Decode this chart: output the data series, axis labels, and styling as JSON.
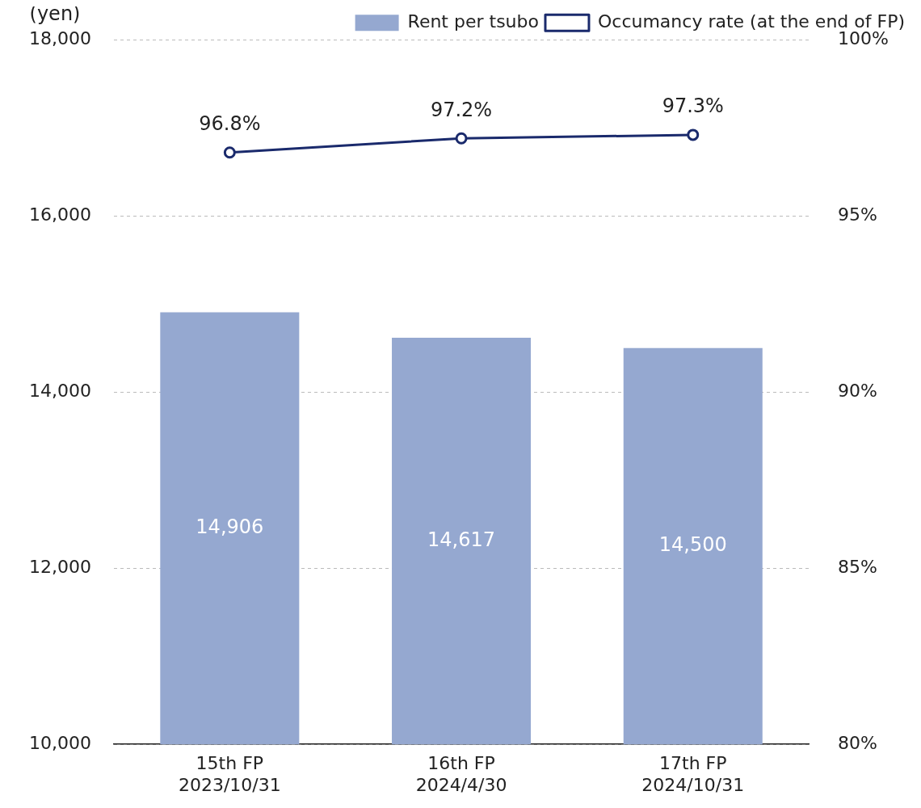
{
  "chart_data": {
    "type": "bar",
    "ylabel": "(yen)",
    "categories": [
      "15th FP\n2023/10/31",
      "16th FP\n2024/4/30",
      "17th FP\n2024/10/31"
    ],
    "series": [
      {
        "name": "Rent per tsubo",
        "color": "#95a8d0",
        "values": [
          14906,
          14617,
          14500
        ],
        "value_labels": [
          "14,906",
          "14,617",
          "14,500"
        ]
      },
      {
        "name": "Occumancy rate (at the end of FP)",
        "type": "line",
        "axis": "y2",
        "color": "#1a2a6c",
        "marker": "circle",
        "values": [
          96.8,
          97.2,
          97.3
        ],
        "value_labels": [
          "96.8%",
          "97.2%",
          "97.3%"
        ]
      }
    ],
    "ylim": [
      10000,
      18000
    ],
    "yticks": [
      {
        "value": 10000,
        "label": "10,000"
      },
      {
        "value": 12000,
        "label": "12,000"
      },
      {
        "value": 14000,
        "label": "14,000"
      },
      {
        "value": 16000,
        "label": "16,000"
      },
      {
        "value": 18000,
        "label": "18,000"
      }
    ],
    "y2lim": [
      80,
      100
    ],
    "y2ticks": [
      {
        "value": 80,
        "label": "80%"
      },
      {
        "value": 85,
        "label": "85%"
      },
      {
        "value": 90,
        "label": "90%"
      },
      {
        "value": 95,
        "label": "95%"
      },
      {
        "value": 100,
        "label": "100%"
      }
    ],
    "grid": "y",
    "legend": "top right"
  }
}
